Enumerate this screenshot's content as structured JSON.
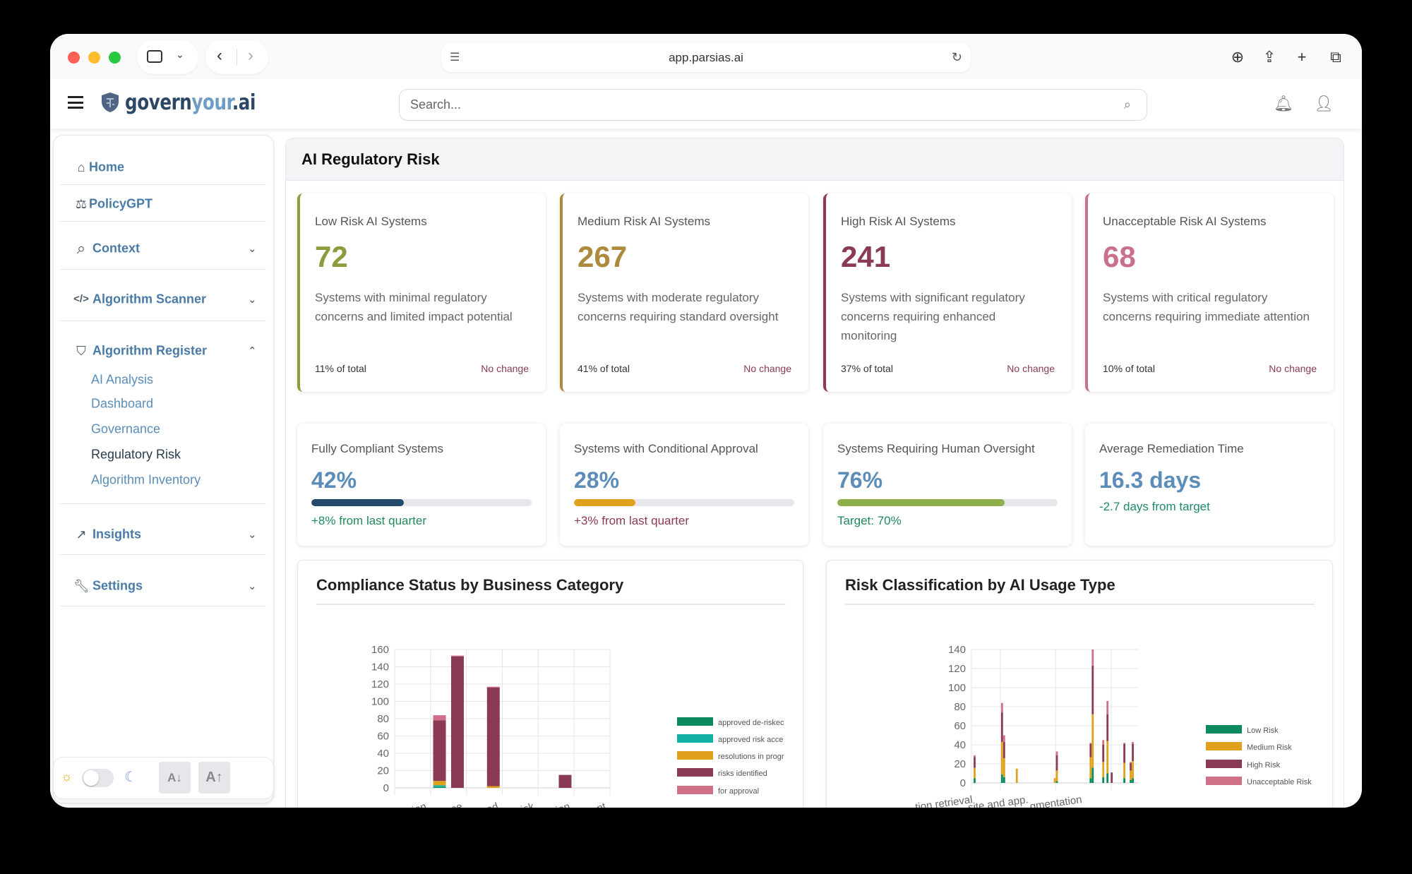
{
  "browser": {
    "url": "app.parsias.ai"
  },
  "header": {
    "logo_prefix": "govern",
    "logo_mid": "your",
    "logo_suffix": ".ai",
    "search_placeholder": "Search..."
  },
  "sidebar": {
    "items": [
      {
        "label": "Home"
      },
      {
        "label": "PolicyGPT"
      },
      {
        "label": "Context"
      },
      {
        "label": "Algorithm Scanner"
      },
      {
        "label": "Algorithm Register"
      },
      {
        "label": "Insights"
      },
      {
        "label": "Settings"
      }
    ],
    "sub_items": [
      {
        "label": "AI Analysis"
      },
      {
        "label": "Dashboard"
      },
      {
        "label": "Governance"
      },
      {
        "label": "Regulatory Risk",
        "active": true
      },
      {
        "label": "Algorithm Inventory"
      }
    ],
    "font_down": "A↓",
    "font_up": "A↑",
    "dark_mode": false
  },
  "page": {
    "title": "AI Regulatory Risk"
  },
  "risk_cards": [
    {
      "title": "Low Risk AI Systems",
      "value": "72",
      "desc": "Systems with minimal regulatory concerns and limited impact potential",
      "pct": "11% of total",
      "change": "No change",
      "color": "#8a9c3e"
    },
    {
      "title": "Medium Risk AI Systems",
      "value": "267",
      "desc": "Systems with moderate regulatory concerns requiring standard oversight",
      "pct": "41% of total",
      "change": "No change",
      "color": "#ad8a3e"
    },
    {
      "title": "High Risk AI Systems",
      "value": "241",
      "desc": "Systems with significant regulatory concerns requiring enhanced monitoring",
      "pct": "37% of total",
      "change": "No change",
      "color": "#8b3a55"
    },
    {
      "title": "Unacceptable Risk AI Systems",
      "value": "68",
      "desc": "Systems with critical regulatory concerns requiring immediate attention",
      "pct": "10% of total",
      "change": "No change",
      "color": "#c9708a"
    }
  ],
  "metric_cards": [
    {
      "title": "Fully Compliant Systems",
      "value": "42%",
      "progress": 42,
      "bar_color": "#23496b",
      "sub": "+8% from last quarter",
      "sub_color": "#1f8a5a"
    },
    {
      "title": "Systems with Conditional Approval",
      "value": "28%",
      "progress": 28,
      "bar_color": "#e0a21c",
      "sub": "+3% from last quarter",
      "sub_color": "#8b3a55"
    },
    {
      "title": "Systems Requiring Human Oversight",
      "value": "76%",
      "progress": 76,
      "bar_color": "#8db04a",
      "sub": "Target: 70%",
      "sub_color": "#1f8a5a"
    },
    {
      "title": "Average Remediation Time",
      "value": "16.3 days",
      "sub": "-2.7 days from target",
      "sub_color": "#1f8a6a"
    }
  ],
  "chart_data": [
    {
      "type": "bar",
      "stacked": true,
      "title": "Compliance Status by Business Category",
      "ylim": [
        0,
        160
      ],
      "yticks": [
        0,
        20,
        40,
        60,
        80,
        100,
        120,
        140,
        160
      ],
      "grid": true,
      "legend": "right",
      "categories": [
        "",
        "tion",
        "",
        "ce",
        "",
        "ed",
        "",
        "risk",
        "",
        "tion",
        "",
        "ent"
      ],
      "series": [
        {
          "name": "approved de-risked",
          "color": "#0b8a5e",
          "values": [
            0,
            0,
            1,
            0,
            0,
            0,
            0,
            0,
            0,
            0,
            0,
            0
          ]
        },
        {
          "name": "approved risk accepted",
          "color": "#12b0a5",
          "values": [
            0,
            0,
            2,
            0,
            0,
            0,
            0,
            0,
            0,
            0,
            0,
            0
          ]
        },
        {
          "name": "resolutions in progress",
          "color": "#e0a21c",
          "values": [
            0,
            0,
            5,
            0,
            0,
            2,
            0,
            0,
            0,
            0,
            0,
            0
          ]
        },
        {
          "name": "risks identified",
          "color": "#8b3a55",
          "values": [
            0,
            0,
            70,
            152,
            0,
            114,
            0,
            0,
            0,
            15,
            0,
            0
          ]
        },
        {
          "name": "for approval",
          "color": "#cf6f88",
          "values": [
            0,
            0,
            6,
            1,
            0,
            1,
            0,
            0,
            0,
            0,
            0,
            0
          ]
        }
      ],
      "legend_labels": [
        "approved de-riskec",
        "approved risk acce",
        "resolutions in progr",
        "risks identified",
        "for approval"
      ]
    },
    {
      "type": "bar",
      "stacked": true,
      "title": "Risk Classification by AI Usage Type",
      "ylim": [
        0,
        140
      ],
      "yticks": [
        0,
        20,
        40,
        60,
        80,
        100,
        120,
        140
      ],
      "grid": true,
      "legend": "right",
      "category_count": 79,
      "tick_labels": [
        "tion retrieval",
        "site and app.",
        "gmentation"
      ],
      "bars": [
        {
          "index": 1,
          "values": [
            5,
            11,
            11,
            2
          ]
        },
        {
          "index": 14,
          "values": [
            9,
            34,
            31,
            10
          ]
        },
        {
          "index": 15,
          "values": [
            6,
            20,
            17,
            7
          ]
        },
        {
          "index": 21,
          "values": [
            0,
            15,
            0,
            0
          ]
        },
        {
          "index": 39,
          "values": [
            0,
            5,
            0,
            0
          ]
        },
        {
          "index": 40,
          "values": [
            2,
            11,
            16,
            4
          ]
        },
        {
          "index": 56,
          "values": [
            5,
            22,
            14,
            1
          ]
        },
        {
          "index": 57,
          "values": [
            16,
            56,
            51,
            17
          ]
        },
        {
          "index": 62,
          "values": [
            6,
            16,
            18,
            5
          ]
        },
        {
          "index": 64,
          "values": [
            10,
            34,
            28,
            14
          ]
        },
        {
          "index": 66,
          "values": [
            0,
            0,
            11,
            0
          ]
        },
        {
          "index": 72,
          "values": [
            5,
            16,
            20,
            1
          ]
        },
        {
          "index": 75,
          "values": [
            3,
            10,
            8,
            1
          ]
        },
        {
          "index": 76,
          "values": [
            5,
            18,
            18,
            2
          ]
        }
      ],
      "series": [
        {
          "name": "Low Risk",
          "color": "#0b8a5e"
        },
        {
          "name": "Medium Risk",
          "color": "#e0a21c"
        },
        {
          "name": "High Risk",
          "color": "#8b3a55"
        },
        {
          "name": "Unacceptable Risk",
          "color": "#cf6f88"
        }
      ]
    }
  ]
}
